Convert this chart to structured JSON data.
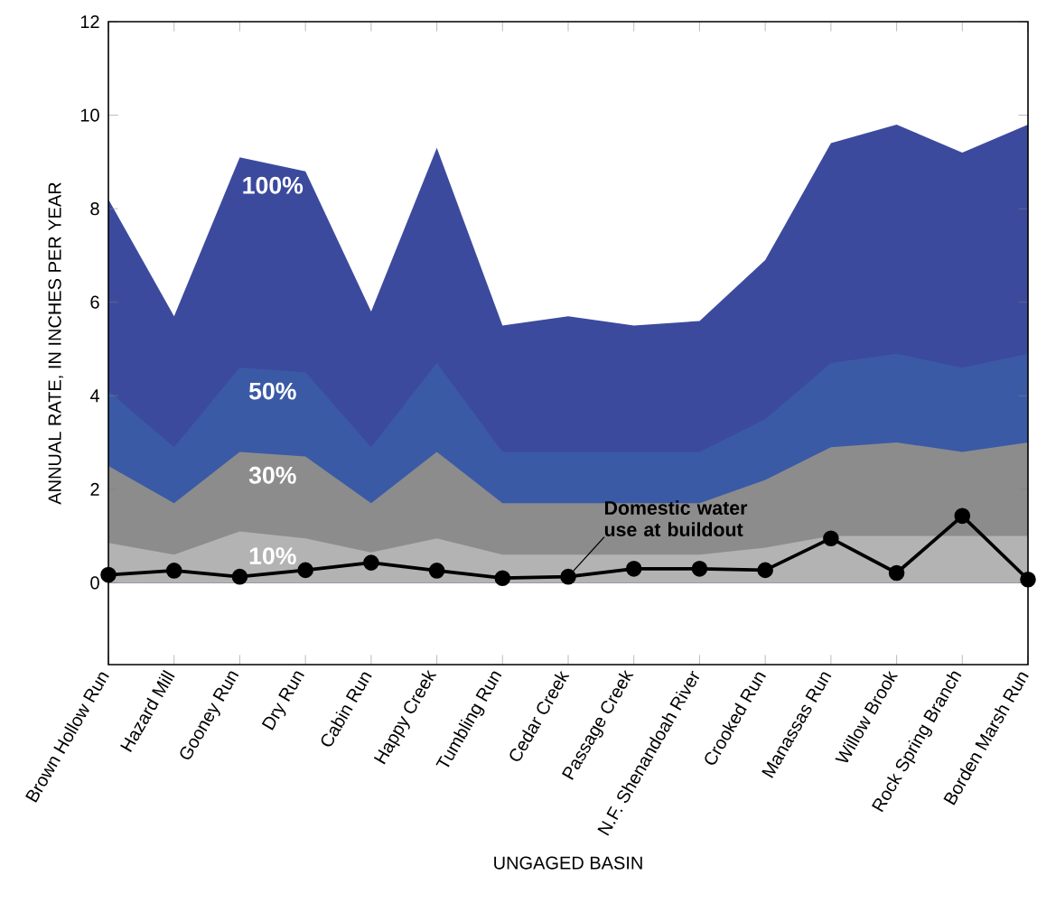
{
  "chart_data": {
    "type": "area",
    "xlabel": "UNGAGED BASIN",
    "ylabel": "ANNUAL RATE, IN INCHES PER YEAR",
    "categories": [
      "Brown Hollow Run",
      "Hazard Mill",
      "Gooney Run",
      "Dry Run",
      "Cabin Run",
      "Happy Creek",
      "Tumbling Run",
      "Cedar Creek",
      "Passage Creek",
      "N.F. Shenandoah River",
      "Crooked Run",
      "Manassas Run",
      "Willow Brook",
      "Rock Spring Branch",
      "Borden Marsh Run"
    ],
    "ylim": [
      -1.75,
      12
    ],
    "yticks": [
      0,
      2,
      4,
      6,
      8,
      10,
      12
    ],
    "grid": false,
    "series": [
      {
        "name": "100%",
        "color": "#3c4a9e",
        "values": [
          8.2,
          5.7,
          9.1,
          8.8,
          5.8,
          9.3,
          5.5,
          5.7,
          5.5,
          5.6,
          6.9,
          9.4,
          9.8,
          9.2,
          9.8
        ]
      },
      {
        "name": "50%",
        "color": "#3b5aa6",
        "values": [
          4.1,
          2.9,
          4.6,
          4.5,
          2.9,
          4.7,
          2.8,
          2.8,
          2.8,
          2.8,
          3.5,
          4.7,
          4.9,
          4.6,
          4.9
        ]
      },
      {
        "name": "30%",
        "color": "#8c8c8c",
        "values": [
          2.5,
          1.7,
          2.8,
          2.7,
          1.7,
          2.8,
          1.7,
          1.7,
          1.7,
          1.7,
          2.2,
          2.9,
          3.0,
          2.8,
          3.0
        ]
      },
      {
        "name": "10%",
        "color": "#b3b3b3",
        "values": [
          0.85,
          0.6,
          1.1,
          0.95,
          0.65,
          0.95,
          0.6,
          0.6,
          0.6,
          0.6,
          0.75,
          1.0,
          1.0,
          1.0,
          1.0
        ]
      },
      {
        "name": "Domestic water use at buildout",
        "type": "line",
        "color": "#000000",
        "marker": "circle",
        "line_style": "solid",
        "values": [
          0.17,
          0.26,
          0.13,
          0.27,
          0.43,
          0.26,
          0.1,
          0.13,
          0.3,
          0.3,
          0.27,
          0.95,
          0.21,
          1.43,
          0.07
        ]
      }
    ]
  }
}
